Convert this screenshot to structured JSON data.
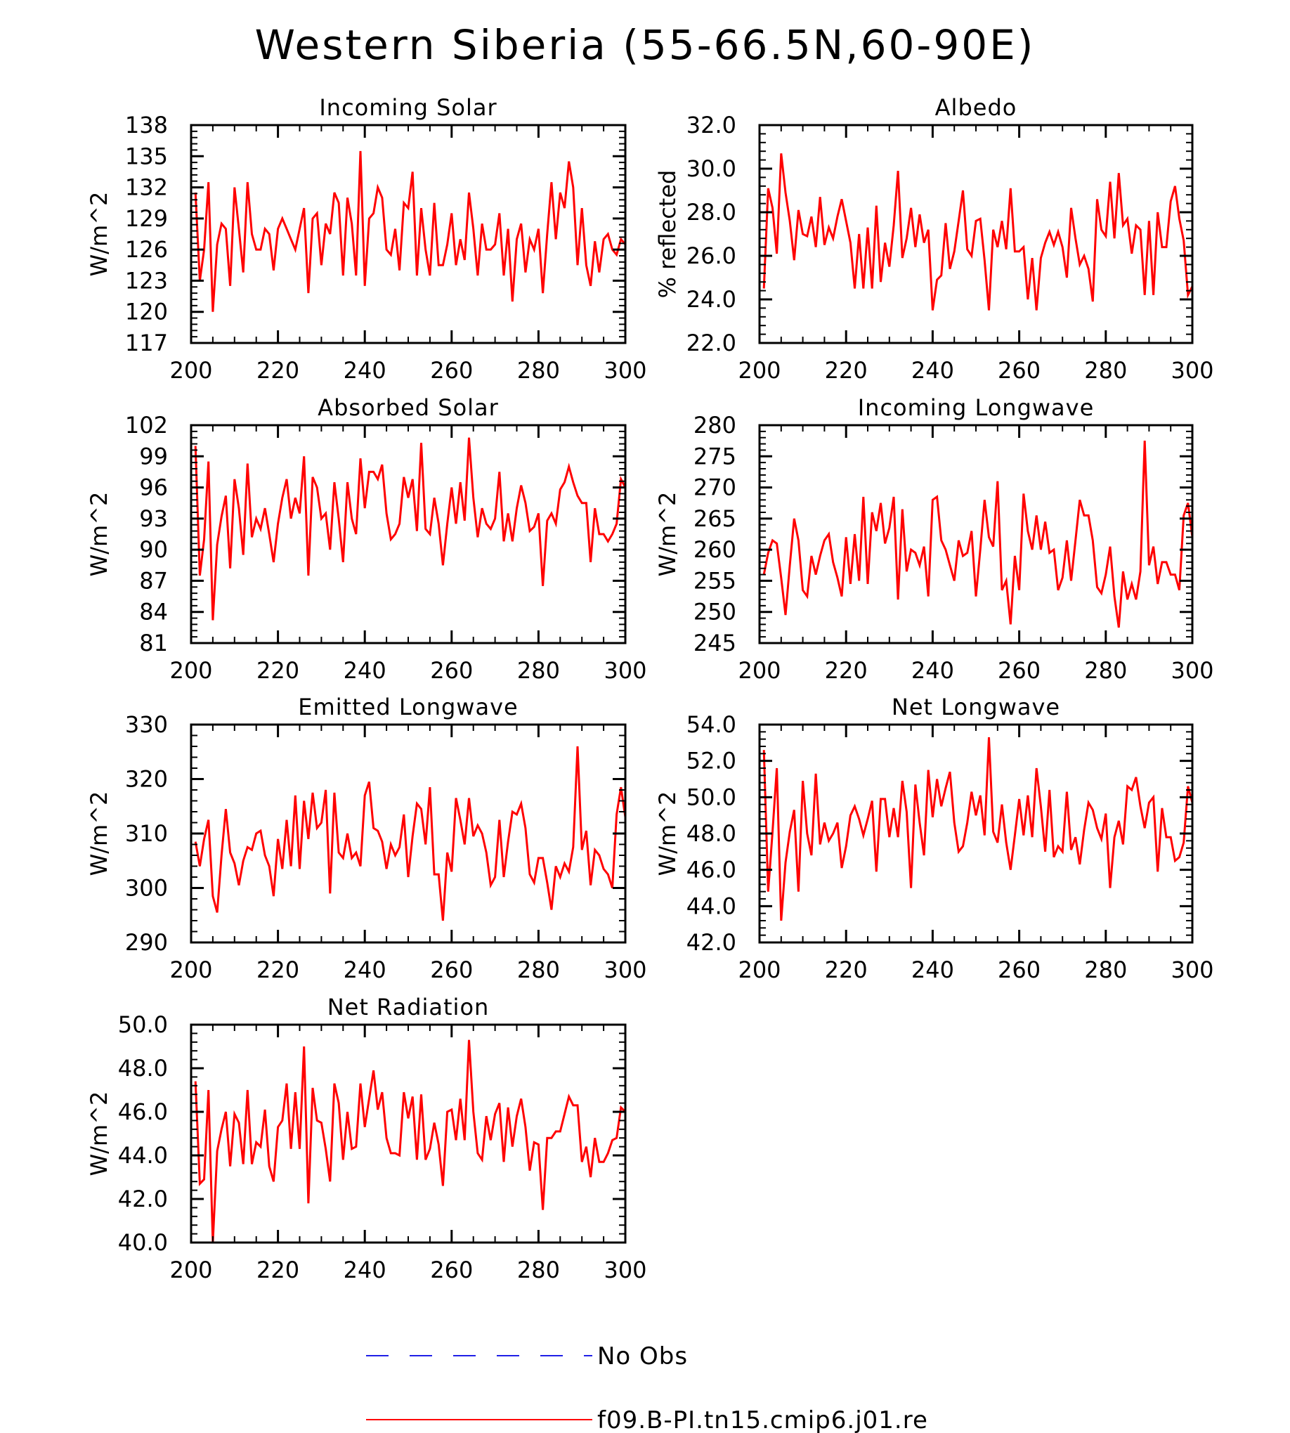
{
  "title": "Western Siberia (55-66.5N,60-90E)",
  "legend": [
    {
      "label": "No Obs",
      "color": "#1f1fe6",
      "dash": true
    },
    {
      "label": "f09.B-PI.tn15.cmip6.j01.re",
      "color": "#ff0000",
      "dash": false
    }
  ],
  "chart_data": [
    {
      "type": "line",
      "title": "Incoming Solar",
      "xlabel": "",
      "ylabel": "W/m^2",
      "xlim": [
        200,
        300
      ],
      "ylim": [
        117,
        138
      ],
      "xticks": [
        "200",
        "220",
        "240",
        "260",
        "280",
        "300"
      ],
      "yticks": [
        "117",
        "120",
        "123",
        "126",
        "129",
        "132",
        "135",
        "138"
      ],
      "x_start": 201,
      "series": [
        {
          "color": "#ff0000",
          "values": [
            131.5,
            123.0,
            126.0,
            132.5,
            120.0,
            126.5,
            128.5,
            128.0,
            122.5,
            132.0,
            128.0,
            123.8,
            132.5,
            127.5,
            126.0,
            126.0,
            128.0,
            127.5,
            124.0,
            128.0,
            129.0,
            128.0,
            127.0,
            126.0,
            128.0,
            130.0,
            121.8,
            129.0,
            129.5,
            124.5,
            128.5,
            127.5,
            131.5,
            130.5,
            123.5,
            131.0,
            128.5,
            123.5,
            135.5,
            122.5,
            129.0,
            129.5,
            132.0,
            131.0,
            126.0,
            125.5,
            128.0,
            124.0,
            130.5,
            130.0,
            133.5,
            123.5,
            130.0,
            126.0,
            123.5,
            130.5,
            124.5,
            124.5,
            126.5,
            129.5,
            124.5,
            127.0,
            125.0,
            131.5,
            128.0,
            123.5,
            128.5,
            126.0,
            126.0,
            126.5,
            129.5,
            123.5,
            128.0,
            121.0,
            127.0,
            128.5,
            123.8,
            127.0,
            126.0,
            128.0,
            121.8,
            127.5,
            132.5,
            127.0,
            131.5,
            130.0,
            134.5,
            132.0,
            124.5,
            130.0,
            124.5,
            122.5,
            126.8,
            123.8,
            127.0,
            127.5,
            126.0,
            125.5,
            127.0,
            126.5
          ]
        }
      ]
    },
    {
      "type": "line",
      "title": "Albedo",
      "xlabel": "",
      "ylabel": "% reflected",
      "xlim": [
        200,
        300
      ],
      "ylim": [
        22.0,
        32.0
      ],
      "xticks": [
        "200",
        "220",
        "240",
        "260",
        "280",
        "300"
      ],
      "yticks": [
        "22.0",
        "24.0",
        "26.0",
        "28.0",
        "30.0",
        "32.0"
      ],
      "x_start": 201,
      "series": [
        {
          "color": "#ff0000",
          "values": [
            24.5,
            29.1,
            28.2,
            26.1,
            30.7,
            28.9,
            27.6,
            25.8,
            28.1,
            27.0,
            26.9,
            27.8,
            26.4,
            28.7,
            26.5,
            27.3,
            26.8,
            27.8,
            28.6,
            27.6,
            26.6,
            24.5,
            27.0,
            24.5,
            27.3,
            24.5,
            28.3,
            24.8,
            26.6,
            25.5,
            27.4,
            29.9,
            25.9,
            26.8,
            28.2,
            26.4,
            27.9,
            26.6,
            27.2,
            23.5,
            24.9,
            25.1,
            27.5,
            25.4,
            26.2,
            27.6,
            29.0,
            26.3,
            26.0,
            27.6,
            27.7,
            25.8,
            23.5,
            27.2,
            26.4,
            27.6,
            26.3,
            29.1,
            26.2,
            26.2,
            26.4,
            24.0,
            25.9,
            23.5,
            25.9,
            26.6,
            27.1,
            26.5,
            27.1,
            26.4,
            25.0,
            28.2,
            26.8,
            25.6,
            26.0,
            25.4,
            23.9,
            28.6,
            27.2,
            26.9,
            29.4,
            26.8,
            29.8,
            27.4,
            27.7,
            26.1,
            27.4,
            27.2,
            24.2,
            27.6,
            24.2,
            28.0,
            26.4,
            26.4,
            28.5,
            29.2,
            27.7,
            26.7,
            24.2,
            24.6
          ]
        }
      ]
    },
    {
      "type": "line",
      "title": "Absorbed Solar",
      "xlabel": "",
      "ylabel": "W/m^2",
      "xlim": [
        200,
        300
      ],
      "ylim": [
        81,
        102
      ],
      "xticks": [
        "200",
        "220",
        "240",
        "260",
        "280",
        "300"
      ],
      "yticks": [
        "81",
        "84",
        "87",
        "90",
        "93",
        "96",
        "99",
        "102"
      ],
      "x_start": 201,
      "series": [
        {
          "color": "#ff0000",
          "values": [
            100.0,
            87.5,
            91.0,
            98.5,
            83.2,
            90.5,
            93.2,
            95.2,
            88.2,
            96.8,
            94.0,
            89.5,
            98.3,
            91.2,
            93.0,
            92.0,
            94.0,
            91.5,
            88.8,
            92.5,
            95.0,
            96.8,
            93.0,
            95.0,
            93.5,
            99.0,
            87.5,
            97.0,
            96.0,
            93.0,
            93.5,
            90.0,
            96.5,
            93.0,
            88.8,
            96.5,
            93.0,
            91.5,
            98.8,
            94.0,
            97.5,
            97.5,
            96.8,
            98.2,
            93.5,
            91.0,
            91.5,
            92.5,
            97.0,
            95.0,
            96.8,
            91.8,
            100.3,
            92.0,
            91.5,
            95.0,
            92.5,
            88.5,
            92.5,
            96.0,
            92.5,
            96.5,
            92.8,
            100.8,
            95.0,
            91.2,
            94.0,
            92.5,
            92.0,
            93.0,
            97.5,
            90.8,
            93.5,
            90.8,
            94.0,
            96.2,
            94.5,
            91.8,
            92.2,
            93.5,
            86.5,
            92.8,
            93.5,
            92.5,
            95.8,
            96.5,
            98.0,
            96.5,
            95.2,
            94.5,
            94.5,
            88.8,
            94.0,
            91.5,
            91.5,
            90.8,
            91.5,
            92.5,
            96.8,
            96.0
          ]
        }
      ]
    },
    {
      "type": "line",
      "title": "Incoming Longwave",
      "xlabel": "",
      "ylabel": "W/m^2",
      "xlim": [
        200,
        300
      ],
      "ylim": [
        245,
        280
      ],
      "xticks": [
        "200",
        "220",
        "240",
        "260",
        "280",
        "300"
      ],
      "yticks": [
        "245",
        "250",
        "255",
        "260",
        "265",
        "270",
        "275",
        "280"
      ],
      "x_start": 201,
      "series": [
        {
          "color": "#ff0000",
          "values": [
            256.0,
            259.5,
            261.5,
            261.0,
            255.5,
            249.5,
            257.5,
            265.0,
            261.5,
            253.5,
            252.5,
            259.0,
            256.0,
            259.0,
            261.5,
            262.5,
            258.0,
            255.5,
            252.5,
            262.0,
            254.5,
            262.5,
            255.0,
            268.5,
            254.5,
            266.0,
            263.0,
            267.5,
            261.0,
            263.5,
            268.5,
            252.0,
            266.5,
            256.5,
            260.0,
            259.5,
            257.5,
            260.5,
            252.5,
            268.0,
            268.5,
            261.5,
            260.0,
            257.5,
            255.0,
            261.5,
            259.0,
            259.5,
            263.0,
            252.5,
            260.0,
            268.0,
            262.0,
            260.5,
            271.0,
            253.5,
            255.0,
            248.0,
            259.0,
            253.5,
            269.0,
            263.0,
            260.0,
            265.5,
            260.0,
            264.5,
            259.5,
            260.0,
            253.5,
            255.5,
            261.5,
            255.0,
            261.5,
            268.0,
            265.5,
            265.5,
            261.5,
            254.0,
            253.0,
            256.0,
            260.5,
            252.5,
            247.5,
            256.5,
            252.0,
            254.5,
            252.0,
            256.5,
            277.5,
            257.5,
            260.5,
            254.5,
            258.0,
            258.0,
            256.0,
            256.0,
            253.5,
            265.5,
            267.5,
            262.0
          ]
        }
      ]
    },
    {
      "type": "line",
      "title": "Emitted Longwave",
      "xlabel": "",
      "ylabel": "W/m^2",
      "xlim": [
        200,
        300
      ],
      "ylim": [
        290,
        330
      ],
      "xticks": [
        "200",
        "220",
        "240",
        "260",
        "280",
        "300"
      ],
      "yticks": [
        "290",
        "300",
        "310",
        "320",
        "330"
      ],
      "x_start": 201,
      "series": [
        {
          "color": "#ff0000",
          "values": [
            308.5,
            304.0,
            309.0,
            312.5,
            298.5,
            295.5,
            306.0,
            314.5,
            306.5,
            304.5,
            300.5,
            305.0,
            307.5,
            307.0,
            310.0,
            310.5,
            306.0,
            304.0,
            298.5,
            309.0,
            303.5,
            312.5,
            304.0,
            317.0,
            303.5,
            316.0,
            309.0,
            317.5,
            311.0,
            312.0,
            318.0,
            299.0,
            317.5,
            306.5,
            305.5,
            310.0,
            305.5,
            306.5,
            304.0,
            317.0,
            319.5,
            311.0,
            310.5,
            308.5,
            303.5,
            308.0,
            306.0,
            307.5,
            313.5,
            302.0,
            309.5,
            315.5,
            314.5,
            308.0,
            318.5,
            302.5,
            302.5,
            294.0,
            306.5,
            303.0,
            316.5,
            312.5,
            308.0,
            316.5,
            309.5,
            311.5,
            310.0,
            306.5,
            300.5,
            302.0,
            312.5,
            302.0,
            308.5,
            314.0,
            313.5,
            315.5,
            311.0,
            302.5,
            301.0,
            305.5,
            305.5,
            301.0,
            296.0,
            304.0,
            302.0,
            304.5,
            303.0,
            307.5,
            326.0,
            307.0,
            310.5,
            300.5,
            307.0,
            306.0,
            303.5,
            302.5,
            300.0,
            313.5,
            318.5,
            313.0
          ]
        }
      ]
    },
    {
      "type": "line",
      "title": "Net Longwave",
      "xlabel": "",
      "ylabel": "W/m^2",
      "xlim": [
        200,
        300
      ],
      "ylim": [
        42.0,
        54.0
      ],
      "xticks": [
        "200",
        "220",
        "240",
        "260",
        "280",
        "300"
      ],
      "yticks": [
        "42.0",
        "44.0",
        "46.0",
        "48.0",
        "50.0",
        "52.0",
        "54.0"
      ],
      "x_start": 201,
      "series": [
        {
          "color": "#ff0000",
          "values": [
            52.6,
            44.8,
            48.1,
            51.6,
            43.2,
            46.4,
            48.1,
            49.3,
            44.8,
            50.9,
            48.0,
            46.8,
            51.3,
            47.4,
            48.6,
            47.6,
            48.0,
            48.6,
            46.1,
            47.3,
            49.0,
            49.5,
            48.8,
            47.9,
            48.8,
            49.8,
            45.9,
            49.9,
            49.9,
            47.8,
            49.4,
            47.8,
            50.9,
            49.2,
            45.0,
            50.7,
            48.6,
            46.8,
            51.5,
            48.9,
            51.0,
            49.5,
            50.5,
            51.4,
            48.6,
            47.0,
            47.3,
            48.6,
            50.3,
            49.0,
            50.1,
            47.9,
            53.3,
            48.1,
            47.5,
            49.6,
            47.5,
            46.0,
            47.9,
            49.9,
            47.9,
            50.1,
            47.8,
            51.6,
            49.5,
            47.0,
            50.4,
            46.7,
            47.3,
            47.0,
            50.3,
            47.1,
            47.8,
            46.3,
            48.2,
            49.7,
            49.3,
            48.3,
            47.7,
            49.1,
            45.0,
            47.8,
            48.7,
            47.4,
            50.6,
            50.4,
            51.1,
            49.5,
            48.3,
            49.7,
            50.0,
            45.9,
            49.4,
            47.8,
            47.8,
            46.5,
            46.7,
            47.5,
            50.6,
            49.7
          ]
        }
      ]
    },
    {
      "type": "line",
      "title": "Net Radiation",
      "xlabel": "",
      "ylabel": "W/m^2",
      "xlim": [
        200,
        300
      ],
      "ylim": [
        40.0,
        50.0
      ],
      "xticks": [
        "200",
        "220",
        "240",
        "260",
        "280",
        "300"
      ],
      "yticks": [
        "40.0",
        "42.0",
        "44.0",
        "46.0",
        "48.0",
        "50.0"
      ],
      "x_start": 201,
      "series": [
        {
          "color": "#ff0000",
          "values": [
            47.4,
            42.7,
            42.9,
            47.0,
            40.0,
            44.2,
            45.2,
            46.0,
            43.5,
            45.9,
            45.5,
            43.6,
            47.0,
            43.6,
            44.6,
            44.4,
            46.1,
            43.5,
            42.8,
            45.3,
            45.6,
            47.3,
            44.3,
            46.9,
            44.3,
            49.0,
            41.8,
            47.1,
            45.6,
            45.5,
            44.3,
            42.8,
            47.3,
            46.4,
            43.8,
            46.0,
            44.3,
            44.4,
            47.3,
            45.3,
            46.6,
            47.9,
            46.1,
            46.9,
            44.8,
            44.1,
            44.1,
            44.0,
            46.9,
            45.7,
            46.7,
            43.8,
            46.8,
            43.8,
            44.3,
            45.5,
            44.5,
            42.6,
            46.0,
            46.1,
            44.7,
            46.6,
            44.7,
            49.3,
            46.0,
            44.1,
            43.8,
            45.8,
            44.7,
            45.9,
            46.4,
            43.7,
            46.2,
            44.4,
            45.8,
            46.6,
            45.3,
            43.3,
            44.6,
            44.5,
            41.5,
            44.8,
            44.8,
            45.1,
            45.1,
            45.9,
            46.7,
            46.3,
            46.3,
            43.7,
            44.4,
            43.0,
            44.8,
            43.7,
            43.7,
            44.1,
            44.7,
            44.8,
            46.2,
            46.0
          ]
        }
      ]
    }
  ]
}
